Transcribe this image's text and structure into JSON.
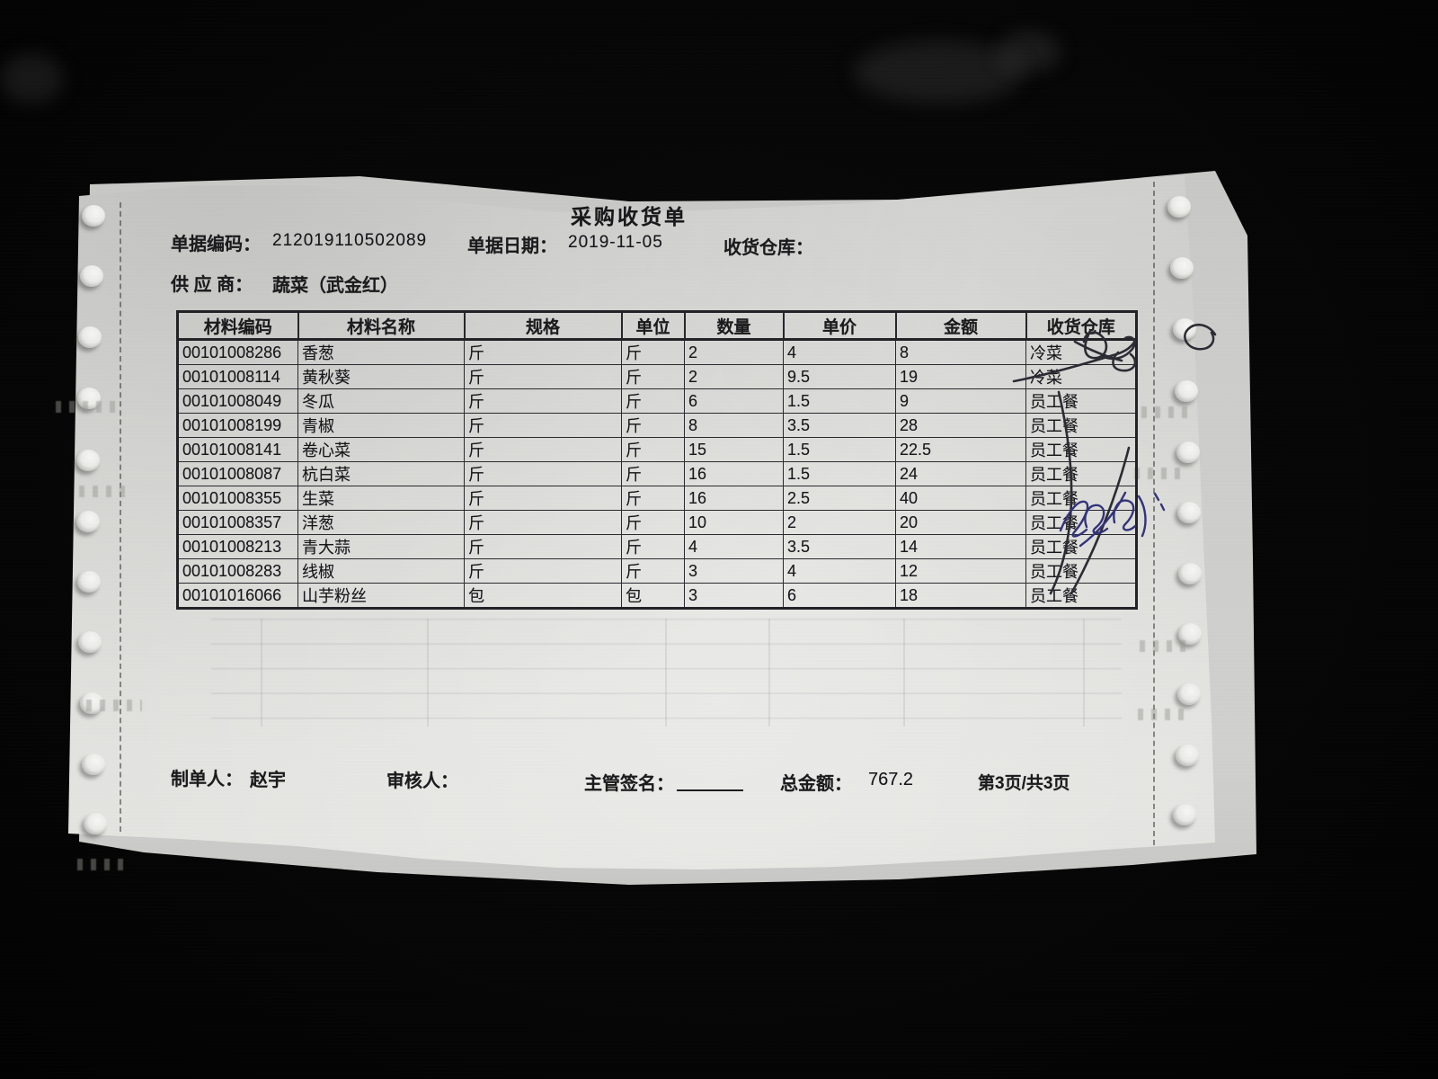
{
  "document": {
    "title": "采购收货单",
    "fields": {
      "doc_no_label": "单据编码：",
      "doc_no": "212019110502089",
      "doc_date_label": "单据日期：",
      "doc_date": "2019-11-05",
      "warehouse_label": "收货仓库：",
      "warehouse": "",
      "supplier_label": "供 应 商：",
      "supplier": "蔬菜（武金红）"
    },
    "table": {
      "headers": [
        "材料编码",
        "材料名称",
        "规格",
        "单位",
        "数量",
        "单价",
        "金额",
        "收货仓库"
      ],
      "rows": [
        [
          "00101008286",
          "香葱",
          "斤",
          "斤",
          "2",
          "4",
          "8",
          "冷菜"
        ],
        [
          "00101008114",
          "黄秋葵",
          "斤",
          "斤",
          "2",
          "9.5",
          "19",
          "冷菜"
        ],
        [
          "00101008049",
          "冬瓜",
          "斤",
          "斤",
          "6",
          "1.5",
          "9",
          "员工餐"
        ],
        [
          "00101008199",
          "青椒",
          "斤",
          "斤",
          "8",
          "3.5",
          "28",
          "员工餐"
        ],
        [
          "00101008141",
          "卷心菜",
          "斤",
          "斤",
          "15",
          "1.5",
          "22.5",
          "员工餐"
        ],
        [
          "00101008087",
          "杭白菜",
          "斤",
          "斤",
          "16",
          "1.5",
          "24",
          "员工餐"
        ],
        [
          "00101008355",
          "生菜",
          "斤",
          "斤",
          "16",
          "2.5",
          "40",
          "员工餐"
        ],
        [
          "00101008357",
          "洋葱",
          "斤",
          "斤",
          "10",
          "2",
          "20",
          "员工餐"
        ],
        [
          "00101008213",
          "青大蒜",
          "斤",
          "斤",
          "4",
          "3.5",
          "14",
          "员工餐"
        ],
        [
          "00101008283",
          "线椒",
          "斤",
          "斤",
          "3",
          "4",
          "12",
          "员工餐"
        ],
        [
          "00101016066",
          "山芋粉丝",
          "包",
          "包",
          "3",
          "6",
          "18",
          "员工餐"
        ]
      ]
    },
    "footer": {
      "maker_label": "制单人：",
      "maker": "赵宇",
      "auditor_label": "审核人：",
      "auditor": "",
      "sign_label": "主管签名：",
      "total_label": "总金额：",
      "total": "767.2",
      "page_info": "第3页/共3页"
    },
    "handwriting": {
      "dark_ink": "#2b2b33",
      "blue_ink": "#32327a"
    }
  }
}
